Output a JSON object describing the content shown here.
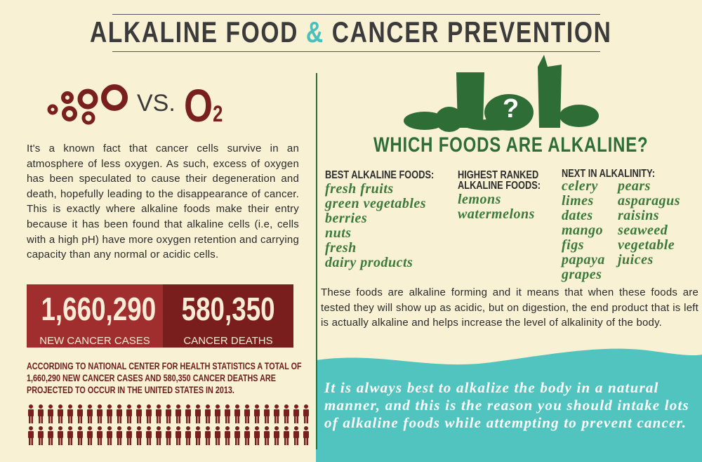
{
  "header": {
    "title_start": "ALKALINE FOOD",
    "title_amp": "&",
    "title_end": "CANCER PREVENTION"
  },
  "left": {
    "vs": "VS.",
    "o2_letter": "O",
    "o2_sub": "2",
    "paragraph": "It's a known fact that cancer cells survive in an atmosphere of less oxygen. As such, excess of oxygen has been speculated to cause their degeneration and death, hopefully leading to the disappearance of cancer. This is exactly where alkaline foods make their entry because it has been found that alkaline cells (i.e, cells with a high pH) have more oxygen retention and carrying capacity than any normal or acidic cells.",
    "stats": [
      {
        "number": "1,660,290",
        "label": "NEW CANCER CASES"
      },
      {
        "number": "580,350",
        "label": "CANCER DEATHS"
      }
    ],
    "note": "ACCORDING TO NATIONAL CENTER FOR HEALTH STATISTICS A TOTAL OF 1,660,290 NEW CANCER CASES AND 580,350 CANCER DEATHS ARE PROJECTED TO OCCUR IN THE UNITED STATES IN 2013."
  },
  "right": {
    "question_mark": "?",
    "heading": "WHICH FOODS ARE ALKALINE?",
    "columns": [
      {
        "title": "BEST ALKALINE FOODS:",
        "items": [
          "fresh fruits",
          "green vegetables",
          "berries",
          "nuts",
          "fresh",
          "dairy products"
        ]
      },
      {
        "title": "HIGHEST RANKED ALKALINE FOODS:",
        "items": [
          "lemons",
          "watermelons"
        ]
      },
      {
        "title": "NEXT IN ALKALINITY:",
        "items": [
          "celery",
          "limes",
          "dates",
          "mango",
          "figs",
          "papaya",
          "grapes"
        ],
        "items_2": [
          "pears",
          "asparagus",
          "raisins",
          "seaweed",
          "vegetable",
          "juices"
        ]
      }
    ],
    "paragraph": "These foods are alkaline forming and it means that when these foods are tested they will show up as acidic, but on digestion, the end product that is left is actually alkaline and helps increase the level of alkalinity of the body.",
    "quote": "It is always best to alkalize the body in a natural manner, and this is the reason you should intake lots of alkaline foods while attempting to prevent cancer."
  }
}
